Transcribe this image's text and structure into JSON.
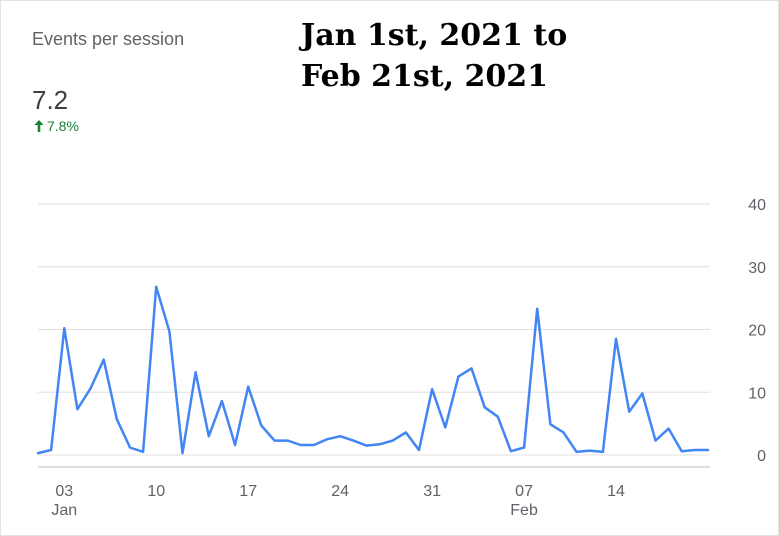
{
  "metric": {
    "label": "Events per session",
    "value": "7.2",
    "change": "7.8%",
    "change_icon": "arrow-up-icon",
    "change_color": "#188038"
  },
  "annotation": {
    "line1": "Jan 1st, 2021 to",
    "line2": "Feb 21st, 2021"
  },
  "chart_data": {
    "type": "line",
    "title": "",
    "xlabel": "",
    "ylabel": "",
    "line_color": "#4285f4",
    "grid": true,
    "ylim": [
      0,
      40
    ],
    "y_ticks": [
      0,
      10,
      20,
      30,
      40
    ],
    "x_tick_labels": [
      {
        "day": "03",
        "month": "Jan"
      },
      {
        "day": "10",
        "month": ""
      },
      {
        "day": "17",
        "month": ""
      },
      {
        "day": "24",
        "month": ""
      },
      {
        "day": "31",
        "month": ""
      },
      {
        "day": "07",
        "month": "Feb"
      },
      {
        "day": "14",
        "month": ""
      }
    ],
    "x_tick_dates": [
      "2021-01-03",
      "2021-01-10",
      "2021-01-17",
      "2021-01-24",
      "2021-01-31",
      "2021-02-07",
      "2021-02-14"
    ],
    "x": [
      "2021-01-01",
      "2021-01-02",
      "2021-01-03",
      "2021-01-04",
      "2021-01-05",
      "2021-01-06",
      "2021-01-07",
      "2021-01-08",
      "2021-01-09",
      "2021-01-10",
      "2021-01-11",
      "2021-01-12",
      "2021-01-13",
      "2021-01-14",
      "2021-01-15",
      "2021-01-16",
      "2021-01-17",
      "2021-01-18",
      "2021-01-19",
      "2021-01-20",
      "2021-01-21",
      "2021-01-22",
      "2021-01-23",
      "2021-01-24",
      "2021-01-25",
      "2021-01-26",
      "2021-01-27",
      "2021-01-28",
      "2021-01-29",
      "2021-01-30",
      "2021-01-31",
      "2021-02-01",
      "2021-02-02",
      "2021-02-03",
      "2021-02-04",
      "2021-02-05",
      "2021-02-06",
      "2021-02-07",
      "2021-02-08",
      "2021-02-09",
      "2021-02-10",
      "2021-02-11",
      "2021-02-12",
      "2021-02-13",
      "2021-02-14",
      "2021-02-15",
      "2021-02-16",
      "2021-02-17",
      "2021-02-18",
      "2021-02-19",
      "2021-02-20",
      "2021-02-21"
    ],
    "values": [
      0.3,
      0.8,
      20.2,
      7.3,
      10.6,
      15.2,
      5.7,
      1.2,
      0.5,
      26.8,
      19.7,
      0.3,
      13.2,
      3.0,
      8.6,
      1.6,
      10.9,
      4.7,
      2.3,
      2.3,
      1.6,
      1.6,
      2.5,
      3.0,
      2.3,
      1.5,
      1.7,
      2.3,
      3.6,
      0.8,
      10.5,
      4.4,
      12.5,
      13.8,
      7.6,
      6.1,
      0.6,
      1.2,
      23.3,
      4.9,
      3.6,
      0.5,
      0.7,
      0.5,
      18.5,
      6.9,
      9.8,
      2.3,
      4.2,
      0.6,
      0.8,
      0.8
    ]
  }
}
